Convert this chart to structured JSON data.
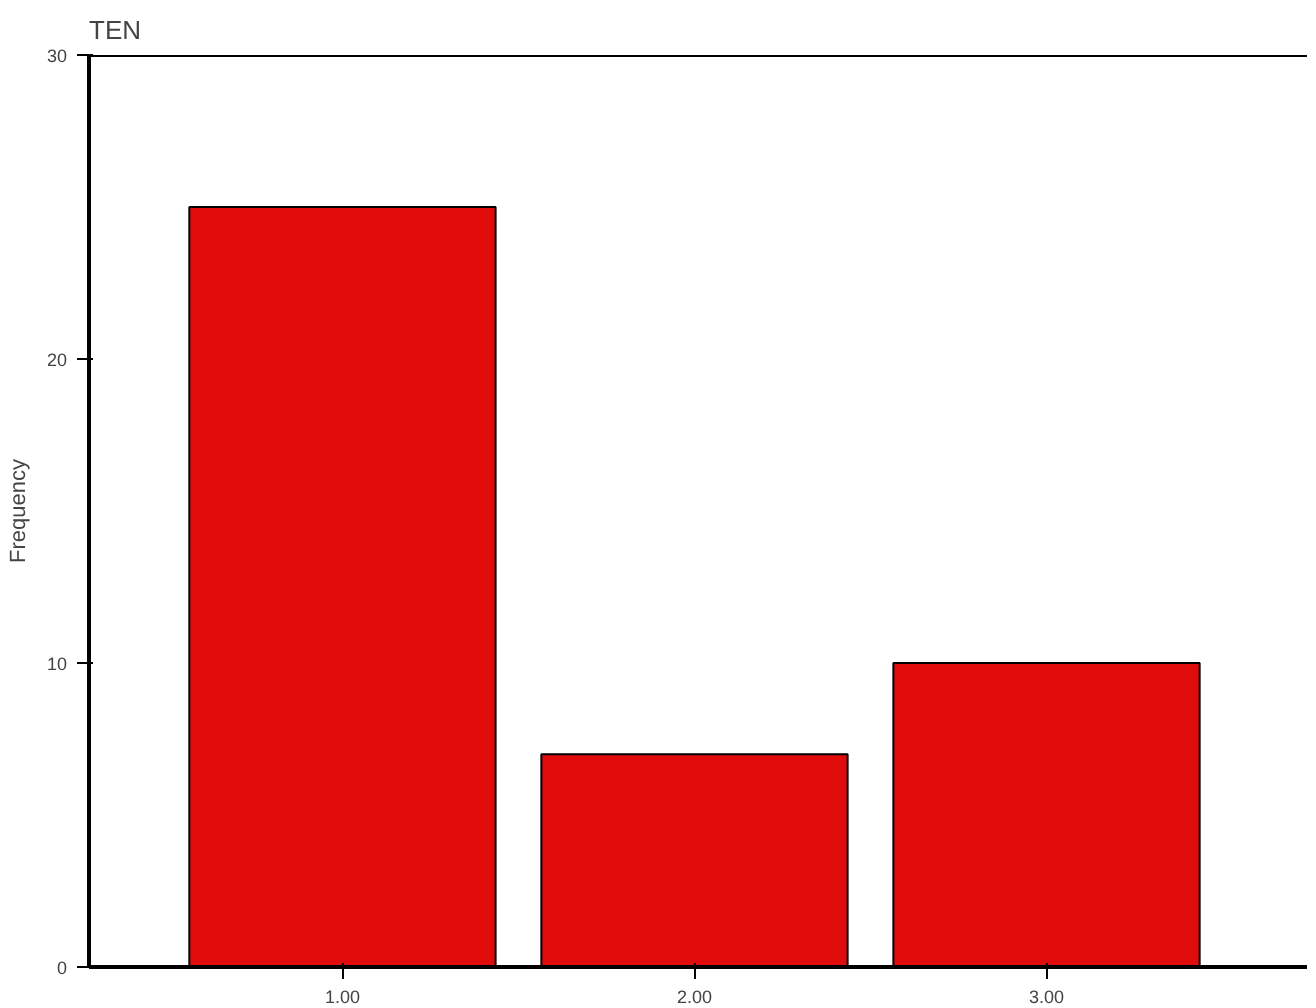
{
  "chart_data": {
    "type": "bar",
    "title": "TEN",
    "ylabel": "Frequency",
    "categories": [
      "1.00",
      "2.00",
      "3.00"
    ],
    "values": [
      25,
      7,
      10
    ],
    "color": "#e00c0c",
    "ylim": [
      0,
      30
    ],
    "yticks": [
      0,
      10,
      20,
      30
    ],
    "grid": false
  }
}
